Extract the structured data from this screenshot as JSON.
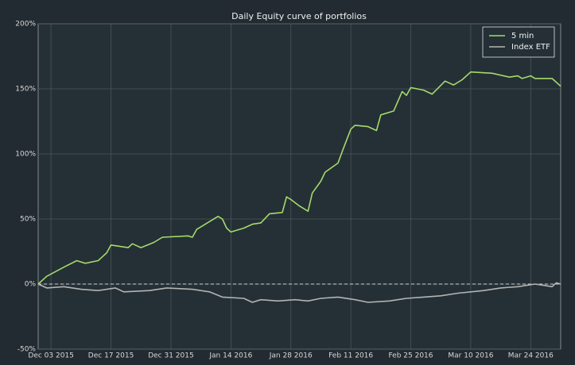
{
  "chart_data": {
    "type": "line",
    "title": "Daily Equity curve of portfolios",
    "xlim": [
      "2015-11-30",
      "2016-03-31"
    ],
    "xticks": [
      {
        "value": "2015-12-03",
        "label": "Dec 03 2015"
      },
      {
        "value": "2015-12-17",
        "label": "Dec 17 2015"
      },
      {
        "value": "2015-12-31",
        "label": "Dec 31 2015"
      },
      {
        "value": "2016-01-14",
        "label": "Jan 14 2016"
      },
      {
        "value": "2016-01-28",
        "label": "Jan 28 2016"
      },
      {
        "value": "2016-02-11",
        "label": "Feb 11 2016"
      },
      {
        "value": "2016-02-25",
        "label": "Feb 25 2016"
      },
      {
        "value": "2016-03-10",
        "label": "Mar 10 2016"
      },
      {
        "value": "2016-03-24",
        "label": "Mar 24 2016"
      }
    ],
    "ylim": [
      -50,
      200
    ],
    "yticks": [
      {
        "value": -50,
        "label": "-50%"
      },
      {
        "value": 0,
        "label": "0%"
      },
      {
        "value": 50,
        "label": "50%"
      },
      {
        "value": 100,
        "label": "100%"
      },
      {
        "value": 150,
        "label": "150%"
      },
      {
        "value": 200,
        "label": "200%"
      }
    ],
    "grid": true,
    "legend": "upper right",
    "series": [
      {
        "name": "5 min",
        "color": "#a6d96a",
        "x": [
          "2015-11-30",
          "2015-12-02",
          "2015-12-06",
          "2015-12-09",
          "2015-12-11",
          "2015-12-14",
          "2015-12-16",
          "2015-12-17",
          "2015-12-21",
          "2015-12-22",
          "2015-12-24",
          "2015-12-27",
          "2015-12-29",
          "2016-01-04",
          "2016-01-05",
          "2016-01-06",
          "2016-01-08",
          "2016-01-11",
          "2016-01-12",
          "2016-01-13",
          "2016-01-14",
          "2016-01-17",
          "2016-01-19",
          "2016-01-21",
          "2016-01-23",
          "2016-01-26",
          "2016-01-27",
          "2016-01-28",
          "2016-01-30",
          "2016-02-01",
          "2016-02-02",
          "2016-02-04",
          "2016-02-05",
          "2016-02-08",
          "2016-02-09",
          "2016-02-11",
          "2016-02-12",
          "2016-02-15",
          "2016-02-17",
          "2016-02-18",
          "2016-02-21",
          "2016-02-23",
          "2016-02-24",
          "2016-02-25",
          "2016-02-28",
          "2016-03-01",
          "2016-03-04",
          "2016-03-06",
          "2016-03-08",
          "2016-03-10",
          "2016-03-15",
          "2016-03-19",
          "2016-03-21",
          "2016-03-22",
          "2016-03-24",
          "2016-03-25",
          "2016-03-29",
          "2016-03-31"
        ],
        "values": [
          0,
          6,
          13,
          18,
          16,
          18,
          24,
          30,
          28,
          31,
          28,
          32,
          36,
          37,
          36,
          42,
          46,
          52,
          50,
          43,
          40,
          43,
          46,
          47,
          54,
          55,
          67,
          65,
          60,
          56,
          70,
          79,
          86,
          93,
          102,
          119,
          122,
          121,
          118,
          130,
          133,
          148,
          145,
          151,
          149,
          146,
          156,
          153,
          157,
          163,
          162,
          159,
          160,
          158,
          160,
          158,
          158,
          152
        ]
      },
      {
        "name": "Index ETF",
        "color": "#b4b4b4",
        "x": [
          "2015-11-30",
          "2015-12-02",
          "2015-12-06",
          "2015-12-10",
          "2015-12-14",
          "2015-12-18",
          "2015-12-20",
          "2015-12-26",
          "2015-12-30",
          "2016-01-05",
          "2016-01-09",
          "2016-01-12",
          "2016-01-17",
          "2016-01-19",
          "2016-01-21",
          "2016-01-25",
          "2016-01-29",
          "2016-02-01",
          "2016-02-04",
          "2016-02-08",
          "2016-02-12",
          "2016-02-15",
          "2016-02-20",
          "2016-02-24",
          "2016-02-28",
          "2016-03-03",
          "2016-03-07",
          "2016-03-13",
          "2016-03-17",
          "2016-03-21",
          "2016-03-25",
          "2016-03-27",
          "2016-03-29",
          "2016-03-30",
          "2016-03-31"
        ],
        "values": [
          0,
          -3,
          -2,
          -4,
          -5,
          -3,
          -6,
          -5,
          -3,
          -4,
          -6,
          -10,
          -11,
          -14,
          -12,
          -13,
          -12,
          -13,
          -11,
          -10,
          -12,
          -14,
          -13,
          -11,
          -10,
          -9,
          -7,
          -5,
          -3,
          -2,
          0,
          -1,
          -2,
          1,
          0
        ]
      }
    ]
  }
}
